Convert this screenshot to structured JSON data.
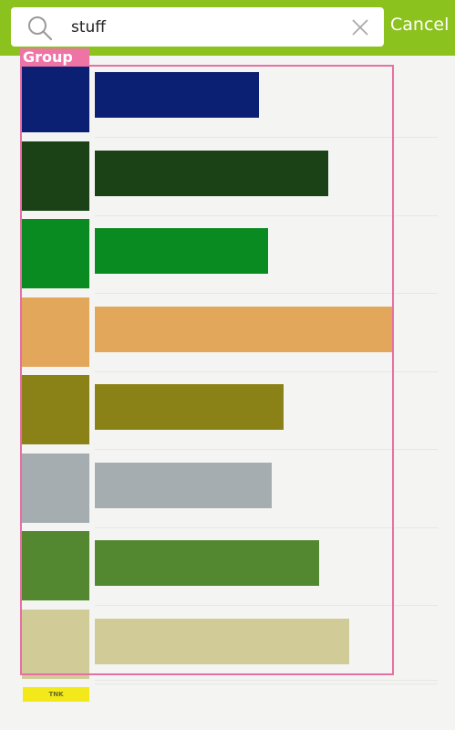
{
  "search": {
    "value": "stuff",
    "placeholder": ""
  },
  "header": {
    "cancel_label": "Cancel"
  },
  "overlay": {
    "group_label": "Group"
  },
  "results": [
    {
      "swatch": "#0b1f73",
      "bar": "#0b1f73",
      "bar_fraction": 0.55
    },
    {
      "swatch": "#1b4116",
      "bar": "#1b4116",
      "bar_fraction": 0.78
    },
    {
      "swatch": "#0a8b21",
      "bar": "#0a8b21",
      "bar_fraction": 0.58
    },
    {
      "swatch": "#e3a75b",
      "bar": "#e3a75b",
      "bar_fraction": 1.0
    },
    {
      "swatch": "#8b8217",
      "bar": "#8b8217",
      "bar_fraction": 0.63
    },
    {
      "swatch": "#a6adb0",
      "bar": "#a6adb0",
      "bar_fraction": 0.59
    },
    {
      "swatch": "#548830",
      "bar": "#548830",
      "bar_fraction": 0.75
    },
    {
      "swatch": "#d1cb97",
      "bar": "#d1cb97",
      "bar_fraction": 0.85
    }
  ],
  "last_item": {
    "swatch_text": "TNK"
  },
  "colors": {
    "topbar": "#8cc21e",
    "group_outline": "#e76fa3"
  }
}
